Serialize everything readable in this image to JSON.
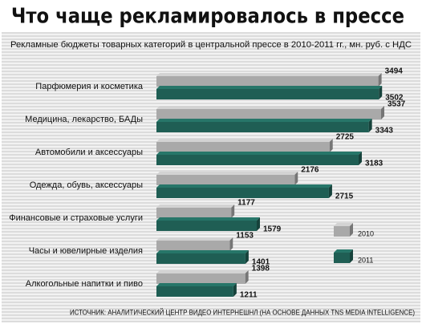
{
  "chart_data": {
    "type": "bar",
    "orientation": "horizontal",
    "title": "Что чаще рекламировалось в прессе",
    "subtitle": "Рекламные бюджеты товарных категорий в центральной прессе в 2010-2011 гг., мн. руб. с НДС",
    "source": "ИСТОЧНИК: АНАЛИТИЧЕСКИЙ ЦЕНТР ВИДЕО ИНТЕРНЕШНЛ (НА ОСНОВЕ ДАННЫХ TNS MEDIA INTELLIGENCE)",
    "categories": [
      "Парфюмерия и косметика",
      "Медицина, лекарство, БАДы",
      "Автомобили и аксессуары",
      "Одежда, обувь, аксессуары",
      "Финансовые и страховые услуги",
      "Часы и ювелирные изделия",
      "Алкогольные напитки и пиво"
    ],
    "series": [
      {
        "name": "2010",
        "color": "#a9a9a9",
        "values": [
          3494,
          3537,
          2725,
          2176,
          1177,
          1153,
          1398
        ]
      },
      {
        "name": "2011",
        "color": "#1f5e54",
        "values": [
          3502,
          3343,
          3183,
          2715,
          1579,
          1401,
          1211
        ]
      }
    ]
  }
}
